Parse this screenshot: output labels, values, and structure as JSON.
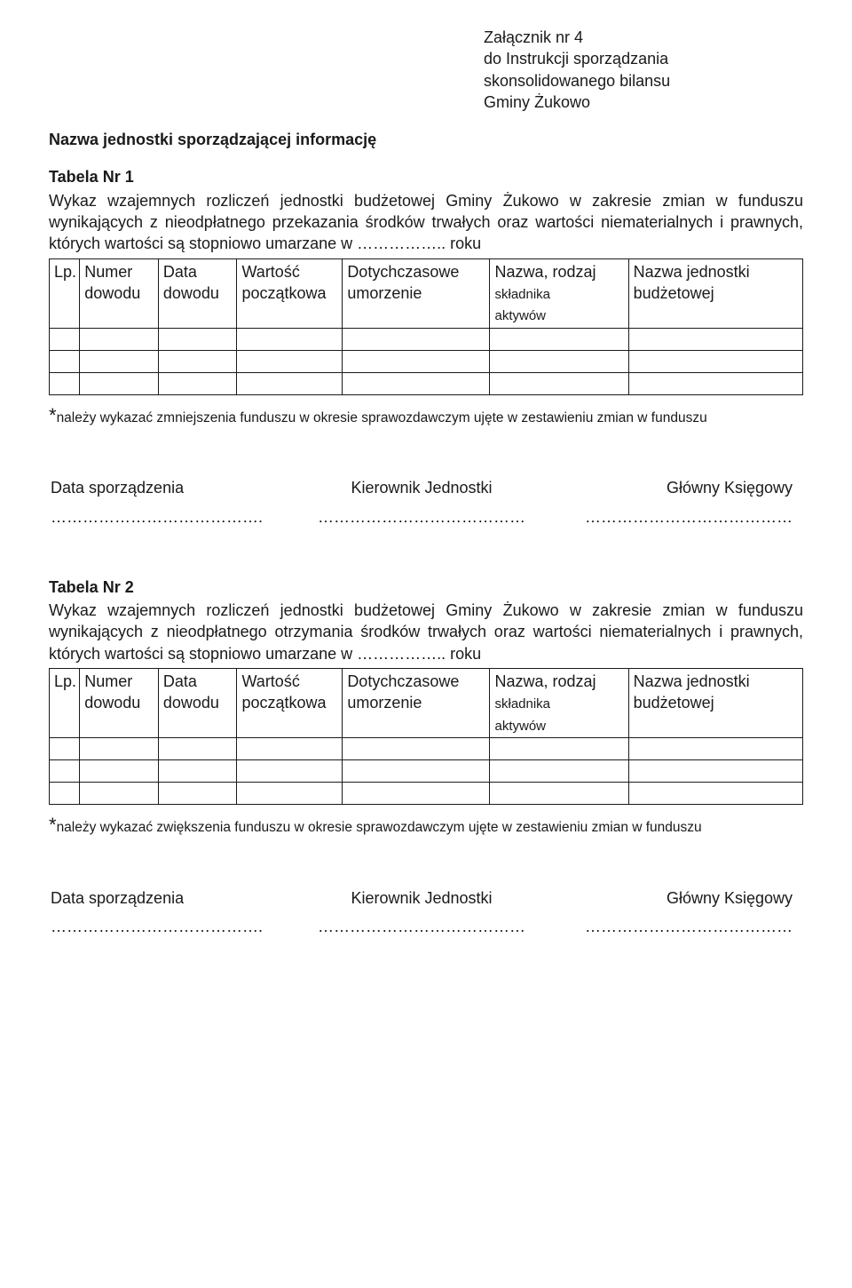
{
  "header": {
    "line1": "Załącznik nr 4",
    "line2": "do Instrukcji sporządzania",
    "line3": "skonsolidowanego bilansu",
    "line4": "Gminy Żukowo"
  },
  "subtitle": "Nazwa jednostki sporządzającej informację",
  "table1": {
    "label": "Tabela  Nr 1",
    "desc": "Wykaz wzajemnych rozliczeń jednostki budżetowej Gminy Żukowo w zakresie zmian w funduszu wynikających z nieodpłatnego przekazania środków trwałych oraz wartości niematerialnych i prawnych, których wartości są stopniowo umarzane w …………….. roku",
    "footnote": "należy wykazać zmniejszenia funduszu w okresie sprawozdawczym ujęte w zestawieniu zmian w funduszu"
  },
  "table2": {
    "label": "Tabela  Nr 2",
    "desc": "Wykaz wzajemnych rozliczeń jednostki budżetowej Gminy Żukowo w zakresie zmian w funduszu wynikających z nieodpłatnego otrzymania środków trwałych oraz wartości niematerialnych i prawnych, których wartości są stopniowo umarzane w …………….. roku",
    "footnote": "należy wykazać zwiększenia funduszu w okresie sprawozdawczym ujęte w zestawieniu zmian w funduszu"
  },
  "columns": {
    "lp": "Lp.",
    "numer_l1": "Numer",
    "numer_l2": "dowodu",
    "data_l1": "Data",
    "data_l2": "dowodu",
    "wartosc_l1": "Wartość",
    "wartosc_l2": "początkowa",
    "dotych_l1": "Dotychczasowe",
    "dotych_l2": "umorzenie",
    "nazwar_l1": "Nazwa, rodzaj",
    "nazwar_l2": "składnika",
    "nazwar_l3": "aktywów",
    "nazwaj_l1": "Nazwa jednostki",
    "nazwaj_l2": "budżetowej"
  },
  "signatures": {
    "col1": "Data sporządzenia",
    "col2": "Kierownik Jednostki",
    "col3": "Główny Księgowy",
    "dots1": "………………………………….",
    "dots2": "…………………………………",
    "dots3": "…………………………………"
  },
  "colors": {
    "text": "#1a1a1a",
    "background": "#ffffff",
    "border": "#1a1a1a"
  },
  "typography": {
    "body_fontsize": 18,
    "footnote_fontsize": 15.5,
    "font_family": "Comic Sans MS"
  }
}
